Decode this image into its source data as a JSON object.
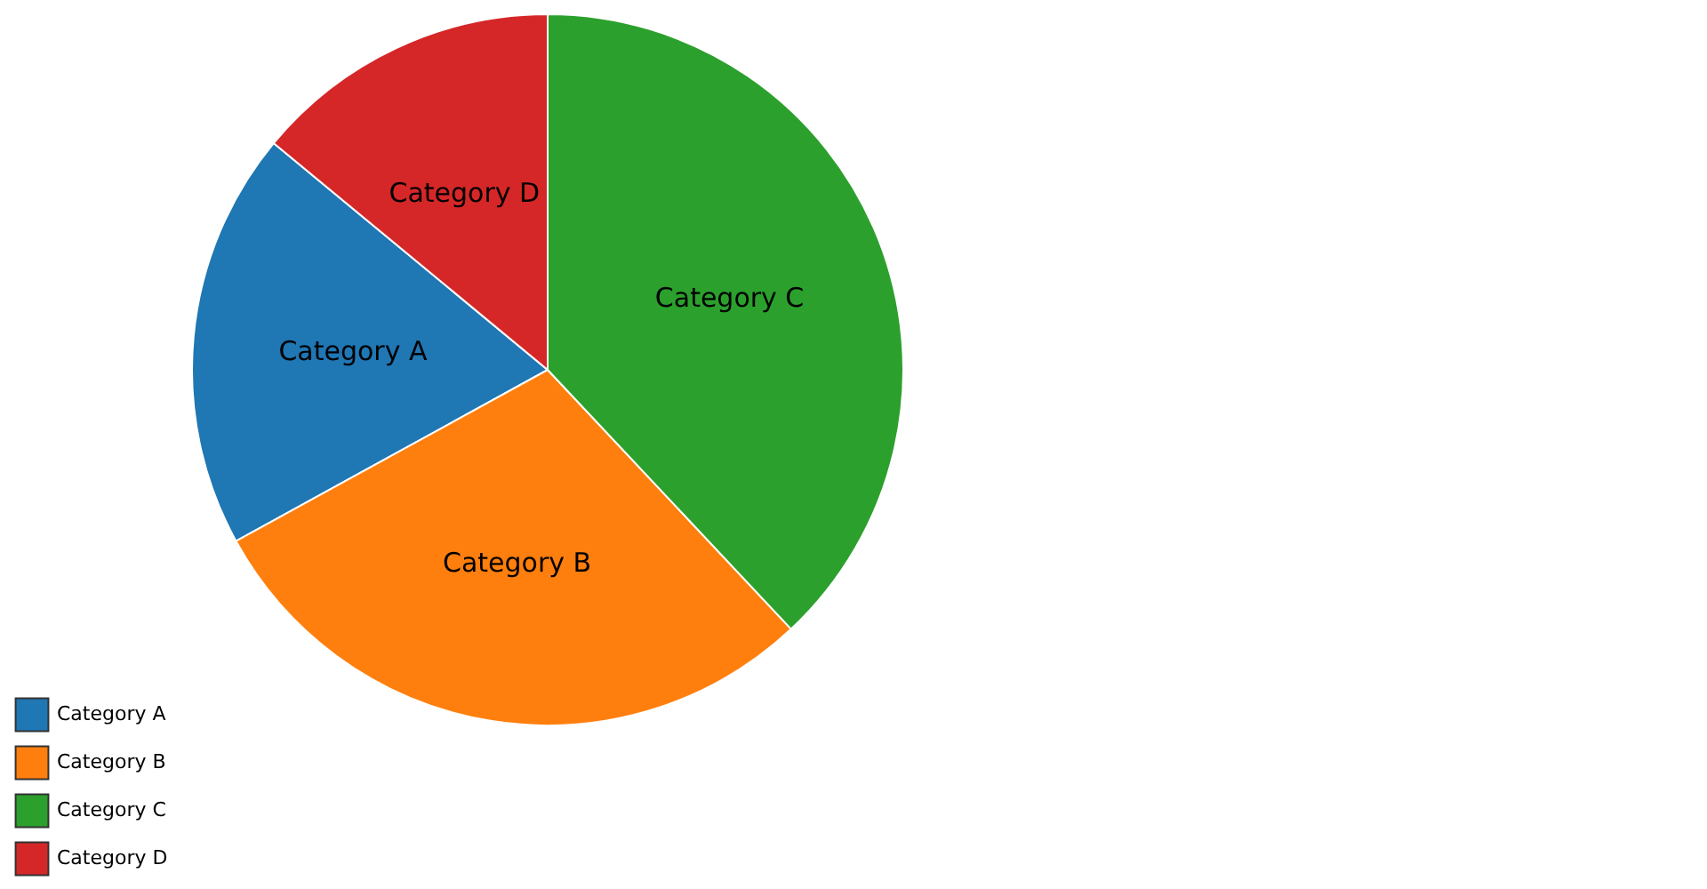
{
  "chart_data": {
    "type": "pie",
    "categories": [
      "Category A",
      "Category B",
      "Category C",
      "Category D"
    ],
    "values": [
      19,
      29,
      38,
      14
    ],
    "colors": [
      "#1f77b4",
      "#ff7f0e",
      "#2ca02c",
      "#d62728"
    ],
    "legend": "bottom left"
  }
}
